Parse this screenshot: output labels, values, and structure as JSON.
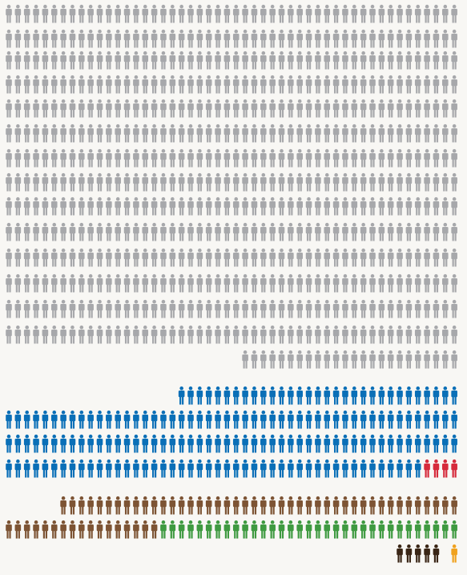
{
  "chart_data": {
    "type": "pictogram",
    "title": "",
    "legend": "none",
    "grid": false,
    "icon": "person-icon",
    "icons_per_row": 50,
    "groups": [
      {
        "key": "gray",
        "color": "#a7a8ab",
        "count": 724,
        "rows_start_at": 0
      },
      {
        "key": "blue",
        "color": "#0a6fb7",
        "count": 177,
        "rows_start_at": 16
      },
      {
        "key": "red",
        "color": "#d62b3c",
        "count": 4,
        "rows_start_at": 19
      },
      {
        "key": "brown",
        "color": "#7d5434",
        "count": 61,
        "rows_start_at": 21
      },
      {
        "key": "green",
        "color": "#3f9a41",
        "count": 33,
        "rows_start_at": 22
      },
      {
        "key": "dark-brown",
        "color": "#3a2616",
        "count": 5,
        "rows_start_at": 23
      },
      {
        "key": "orange",
        "color": "#f0a21f",
        "count": 1,
        "rows_start_at": 23
      }
    ]
  }
}
